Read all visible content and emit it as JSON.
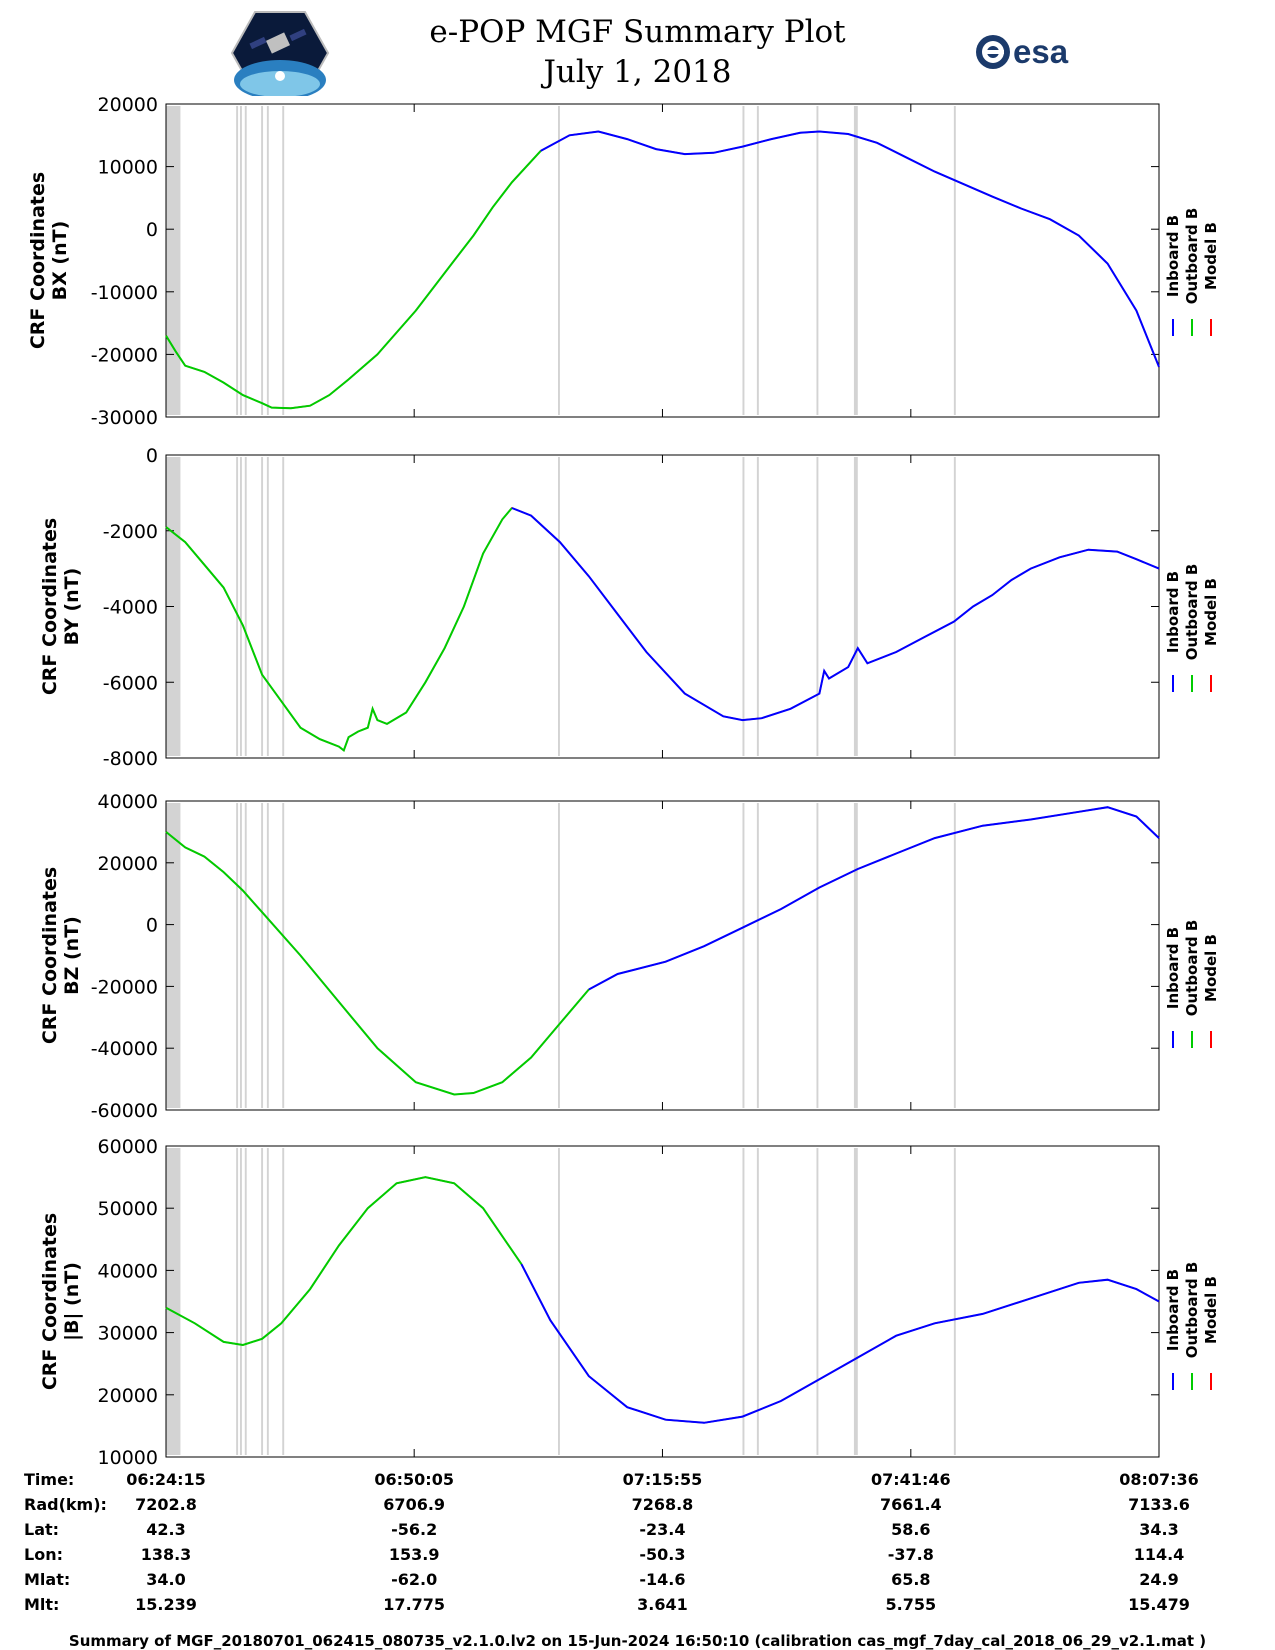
{
  "header": {
    "title": "e-POP MGF Summary Plot",
    "date": "July 1, 2018",
    "left_logo": "cassiope-satellite-logo",
    "right_logo": "esa-logo",
    "right_logo_text": "esa"
  },
  "colors": {
    "inboard": "#0000ff",
    "outboard": "#00cc00",
    "model": "#ff0000",
    "gap": "#d3d3d3"
  },
  "legend": [
    {
      "name": "Inboard B",
      "color": "#0000ff"
    },
    {
      "name": "Outboard B",
      "color": "#00cc00"
    },
    {
      "name": "Model B",
      "color": "#ff0000"
    }
  ],
  "chart_data": {
    "type": "line",
    "x_unit": "minutes after 06:24:15",
    "x_range": [
      0,
      103.35
    ],
    "grid": false,
    "legend_placement": "right",
    "gaps": [
      [
        0,
        1.5
      ],
      [
        7.3,
        7.5
      ],
      [
        7.7,
        7.9
      ],
      [
        8.2,
        8.4
      ],
      [
        9.9,
        10.1
      ],
      [
        10.5,
        10.7
      ],
      [
        12.1,
        12.3
      ],
      [
        40.8,
        41.0
      ],
      [
        60.0,
        60.2
      ],
      [
        61.5,
        61.7
      ],
      [
        67.7,
        67.9
      ],
      [
        71.6,
        72.0
      ],
      [
        82.0,
        82.2
      ]
    ],
    "panels": [
      {
        "name": "bx",
        "ylabel_line1": "CRF Coordinates",
        "ylabel_line2": "BX (nT)",
        "ylim": [
          -30000,
          20000
        ],
        "yticks": [
          -30000,
          -20000,
          -10000,
          0,
          10000,
          20000
        ],
        "switch_x": 39,
        "points": [
          [
            0,
            -17000
          ],
          [
            1,
            -19500
          ],
          [
            2,
            -21800
          ],
          [
            4,
            -22800
          ],
          [
            6,
            -24500
          ],
          [
            8,
            -26500
          ],
          [
            10,
            -27800
          ],
          [
            11,
            -28500
          ],
          [
            13,
            -28600
          ],
          [
            15,
            -28200
          ],
          [
            17,
            -26500
          ],
          [
            19,
            -24000
          ],
          [
            22,
            -20000
          ],
          [
            26,
            -13000
          ],
          [
            30,
            -5000
          ],
          [
            32,
            -1000
          ],
          [
            34,
            3500
          ],
          [
            36,
            7500
          ],
          [
            39,
            12500
          ],
          [
            42,
            15000
          ],
          [
            45,
            15600
          ],
          [
            48,
            14400
          ],
          [
            51,
            12800
          ],
          [
            54,
            12000
          ],
          [
            57,
            12200
          ],
          [
            60,
            13200
          ],
          [
            63,
            14400
          ],
          [
            66,
            15400
          ],
          [
            68,
            15600
          ],
          [
            71,
            15200
          ],
          [
            74,
            13800
          ],
          [
            77,
            11500
          ],
          [
            80,
            9200
          ],
          [
            83,
            7200
          ],
          [
            86,
            5200
          ],
          [
            89,
            3300
          ],
          [
            92,
            1600
          ],
          [
            95,
            -1000
          ],
          [
            98,
            -5500
          ],
          [
            101,
            -13000
          ],
          [
            103.35,
            -22000
          ]
        ]
      },
      {
        "name": "by",
        "ylabel_line1": "CRF Coordinates",
        "ylabel_line2": "BY (nT)",
        "ylim": [
          -8000,
          0
        ],
        "yticks": [
          -8000,
          -6000,
          -4000,
          -2000,
          0
        ],
        "switch_x": 36,
        "points": [
          [
            0,
            -1900
          ],
          [
            2,
            -2300
          ],
          [
            4,
            -2900
          ],
          [
            6,
            -3500
          ],
          [
            8,
            -4500
          ],
          [
            10,
            -5800
          ],
          [
            12,
            -6500
          ],
          [
            14,
            -7200
          ],
          [
            16,
            -7500
          ],
          [
            18,
            -7700
          ],
          [
            18.5,
            -7800
          ],
          [
            19,
            -7450
          ],
          [
            20,
            -7300
          ],
          [
            21,
            -7200
          ],
          [
            21.5,
            -6700
          ],
          [
            22,
            -7000
          ],
          [
            23,
            -7100
          ],
          [
            25,
            -6800
          ],
          [
            27,
            -6000
          ],
          [
            29,
            -5100
          ],
          [
            31,
            -4000
          ],
          [
            33,
            -2600
          ],
          [
            35,
            -1700
          ],
          [
            36,
            -1400
          ],
          [
            38,
            -1600
          ],
          [
            41,
            -2300
          ],
          [
            44,
            -3200
          ],
          [
            47,
            -4200
          ],
          [
            50,
            -5200
          ],
          [
            54,
            -6300
          ],
          [
            58,
            -6900
          ],
          [
            60,
            -7000
          ],
          [
            62,
            -6950
          ],
          [
            65,
            -6700
          ],
          [
            68,
            -6300
          ],
          [
            68.5,
            -5700
          ],
          [
            69,
            -5900
          ],
          [
            71,
            -5600
          ],
          [
            72,
            -5100
          ],
          [
            73,
            -5500
          ],
          [
            76,
            -5200
          ],
          [
            79,
            -4800
          ],
          [
            82,
            -4400
          ],
          [
            84,
            -4000
          ],
          [
            86,
            -3700
          ],
          [
            88,
            -3300
          ],
          [
            90,
            -3000
          ],
          [
            93,
            -2700
          ],
          [
            96,
            -2500
          ],
          [
            99,
            -2550
          ],
          [
            101,
            -2750
          ],
          [
            103.35,
            -3000
          ]
        ]
      },
      {
        "name": "bz",
        "ylabel_line1": "CRF Coordinates",
        "ylabel_line2": "BZ (nT)",
        "ylim": [
          -60000,
          40000
        ],
        "yticks": [
          -60000,
          -40000,
          -20000,
          0,
          20000,
          40000
        ],
        "switch_x": 44,
        "points": [
          [
            0,
            30000
          ],
          [
            2,
            25000
          ],
          [
            4,
            22000
          ],
          [
            6,
            17000
          ],
          [
            8,
            11000
          ],
          [
            10,
            4000
          ],
          [
            14,
            -10000
          ],
          [
            18,
            -25000
          ],
          [
            22,
            -40000
          ],
          [
            26,
            -51000
          ],
          [
            30,
            -55000
          ],
          [
            32,
            -54500
          ],
          [
            35,
            -51000
          ],
          [
            38,
            -43000
          ],
          [
            41,
            -32000
          ],
          [
            44,
            -21000
          ],
          [
            47,
            -16000
          ],
          [
            52,
            -12000
          ],
          [
            56,
            -7000
          ],
          [
            60,
            -1000
          ],
          [
            64,
            5000
          ],
          [
            68,
            12000
          ],
          [
            72,
            18000
          ],
          [
            76,
            23000
          ],
          [
            80,
            28000
          ],
          [
            85,
            32000
          ],
          [
            90,
            34000
          ],
          [
            95,
            36500
          ],
          [
            98,
            38000
          ],
          [
            101,
            35000
          ],
          [
            103.35,
            28000
          ]
        ]
      },
      {
        "name": "bmag",
        "ylabel_line1": "CRF Coordinates",
        "ylabel_line2": "|B| (nT)",
        "ylim": [
          10000,
          60000
        ],
        "yticks": [
          10000,
          20000,
          30000,
          40000,
          50000,
          60000
        ],
        "switch_x": 37,
        "points": [
          [
            0,
            34000
          ],
          [
            3,
            31500
          ],
          [
            6,
            28500
          ],
          [
            8,
            28000
          ],
          [
            10,
            29000
          ],
          [
            12,
            31500
          ],
          [
            15,
            37000
          ],
          [
            18,
            44000
          ],
          [
            21,
            50000
          ],
          [
            24,
            54000
          ],
          [
            27,
            55000
          ],
          [
            30,
            54000
          ],
          [
            33,
            50000
          ],
          [
            37,
            41000
          ],
          [
            40,
            32000
          ],
          [
            44,
            23000
          ],
          [
            48,
            18000
          ],
          [
            52,
            16000
          ],
          [
            56,
            15500
          ],
          [
            60,
            16500
          ],
          [
            64,
            19000
          ],
          [
            68,
            22500
          ],
          [
            72,
            26000
          ],
          [
            76,
            29500
          ],
          [
            80,
            31500
          ],
          [
            85,
            33000
          ],
          [
            90,
            35500
          ],
          [
            95,
            38000
          ],
          [
            98,
            38500
          ],
          [
            101,
            37000
          ],
          [
            103.35,
            35000
          ]
        ]
      }
    ]
  },
  "xticks": [
    {
      "label": "06:24:15",
      "x": 0
    },
    {
      "label": "06:50:05",
      "x": 25.83
    },
    {
      "label": "07:15:55",
      "x": 51.67
    },
    {
      "label": "07:41:46",
      "x": 77.52
    },
    {
      "label": "08:07:36",
      "x": 103.35
    }
  ],
  "ephemeris": [
    {
      "label": "Time:",
      "values": [
        "06:24:15",
        "06:50:05",
        "07:15:55",
        "07:41:46",
        "08:07:36"
      ]
    },
    {
      "label": "Rad(km):",
      "values": [
        "7202.8",
        "6706.9",
        "7268.8",
        "7661.4",
        "7133.6"
      ]
    },
    {
      "label": "Lat:",
      "values": [
        "42.3",
        "-56.2",
        "-23.4",
        "58.6",
        "34.3"
      ]
    },
    {
      "label": "Lon:",
      "values": [
        "138.3",
        "153.9",
        "-50.3",
        "-37.8",
        "114.4"
      ]
    },
    {
      "label": "Mlat:",
      "values": [
        "34.0",
        "-62.0",
        "-14.6",
        "65.8",
        "24.9"
      ]
    },
    {
      "label": "Mlt:",
      "values": [
        "15.239",
        "17.775",
        "3.641",
        "5.755",
        "15.479"
      ]
    }
  ],
  "footer": "Summary of MGF_20180701_062415_080735_v2.1.0.lv2 on 15-Jun-2024 16:50:10 (calibration cas_mgf_7day_cal_2018_06_29_v2.1.mat )"
}
